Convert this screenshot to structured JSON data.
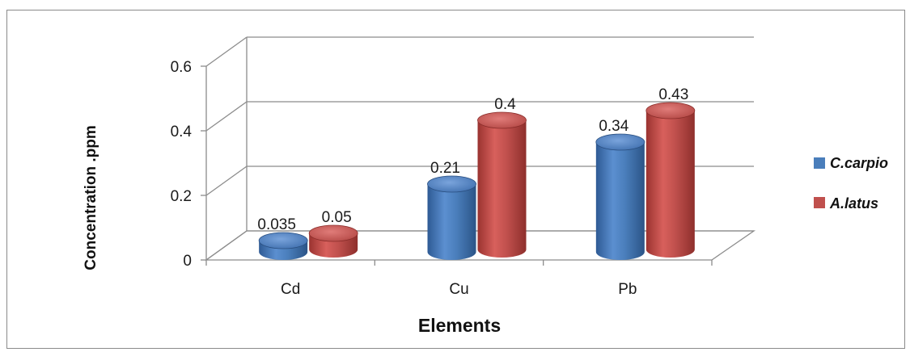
{
  "chart_data": {
    "type": "bar",
    "style": "3d-cylinder",
    "categories": [
      "Cd",
      "Cu",
      "Pb"
    ],
    "series": [
      {
        "name": "C.carpio",
        "values": [
          0.035,
          0.21,
          0.34
        ],
        "labels": [
          "0.035",
          "0.21",
          "0.34"
        ],
        "color": "#4a7ebb"
      },
      {
        "name": "A.latus",
        "values": [
          0.05,
          0.4,
          0.43
        ],
        "labels": [
          "0.05",
          "0.4",
          "0.43"
        ],
        "color": "#c0504d"
      }
    ],
    "ylim": [
      0,
      0.6
    ],
    "yticks": [
      0,
      0.2,
      0.4,
      0.6
    ],
    "ytick_labels": [
      "0",
      "0.2",
      "0.4",
      "0.6"
    ],
    "xlabel": "Elements",
    "ylabel": "Concentration .ppm",
    "grid": true,
    "legend_position": "right"
  }
}
